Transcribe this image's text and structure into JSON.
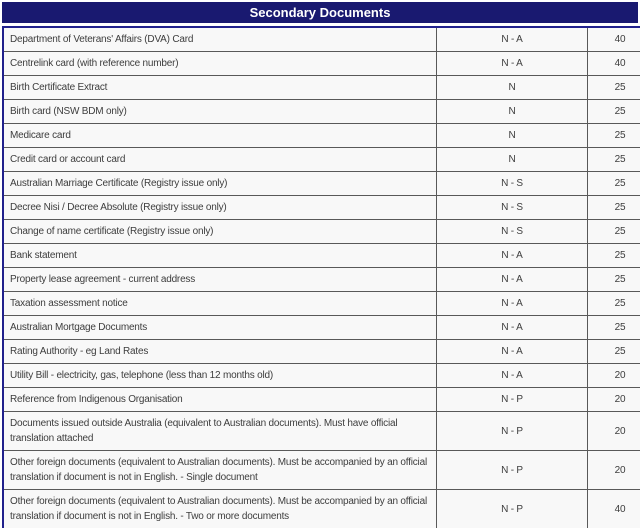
{
  "title_bar": {
    "title": "Secondary Documents"
  },
  "table": {
    "rows": [
      {
        "document": "Department of Veterans' Affairs (DVA) Card",
        "code": "N - A",
        "points": "40"
      },
      {
        "document": "Centrelink card (with reference number)",
        "code": "N - A",
        "points": "40"
      },
      {
        "document": "Birth Certificate Extract",
        "code": "N",
        "points": "25"
      },
      {
        "document": "Birth card (NSW BDM only)",
        "code": "N",
        "points": "25"
      },
      {
        "document": "Medicare card",
        "code": "N",
        "points": "25"
      },
      {
        "document": "Credit card or account card",
        "code": "N",
        "points": "25"
      },
      {
        "document": "Australian Marriage Certificate (Registry issue only)",
        "code": "N - S",
        "points": "25"
      },
      {
        "document": "Decree Nisi / Decree Absolute (Registry issue only)",
        "code": "N - S",
        "points": "25"
      },
      {
        "document": "Change of name certificate (Registry issue only)",
        "code": "N - S",
        "points": "25"
      },
      {
        "document": "Bank statement",
        "code": "N - A",
        "points": "25"
      },
      {
        "document": "Property lease agreement - current address",
        "code": "N - A",
        "points": "25"
      },
      {
        "document": "Taxation assessment notice",
        "code": "N - A",
        "points": "25"
      },
      {
        "document": "Australian Mortgage Documents",
        "code": "N - A",
        "points": "25"
      },
      {
        "document": "Rating Authority - eg Land Rates",
        "code": "N - A",
        "points": "25"
      },
      {
        "document": "Utility Bill - electricity, gas, telephone (less than 12 months old)",
        "code": "N - A",
        "points": "20"
      },
      {
        "document": "Reference from Indigenous Organisation",
        "code": "N - P",
        "points": "20"
      },
      {
        "document": "Documents issued outside Australia (equivalent to Australian documents). Must have official translation attached",
        "code": "N - P",
        "points": "20"
      },
      {
        "document": "Other foreign documents (equivalent to Australian documents). Must be accompanied by an official translation if document is not in English. - Single document",
        "code": "N - P",
        "points": "20"
      },
      {
        "document": "Other foreign documents (equivalent to Australian documents). Must be accompanied by an official translation if document is not in English. - Two or more documents",
        "code": "N - P",
        "points": "40"
      }
    ]
  },
  "colors": {
    "header_bg": "#191970",
    "header_text": "#ffffff",
    "outer_border": "#20208c",
    "inner_border": "#595959",
    "row_bg": "#f8f8f8",
    "text": "#3d3d3d"
  }
}
